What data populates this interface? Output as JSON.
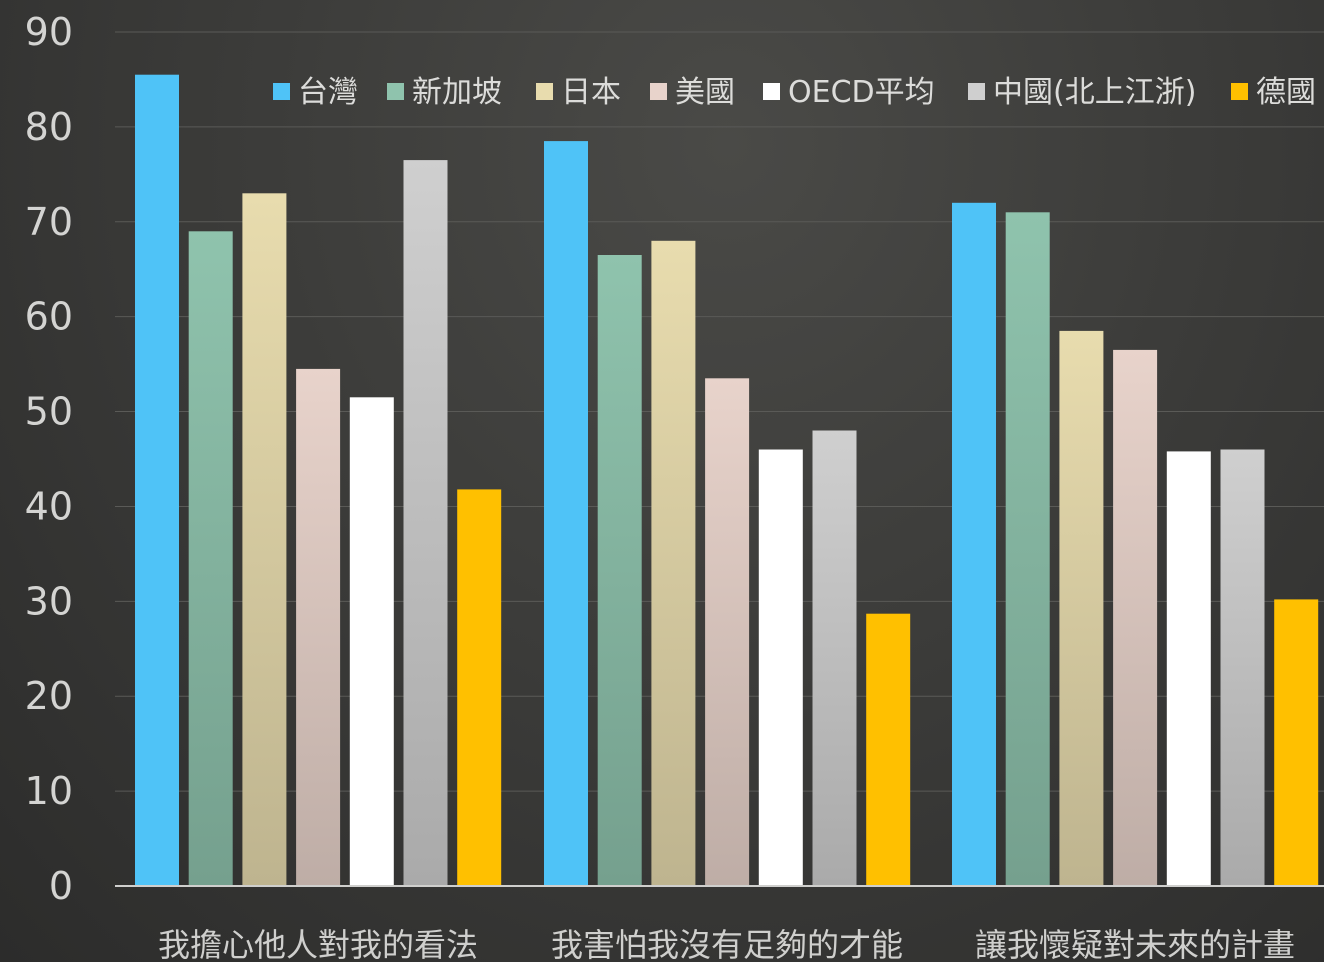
{
  "chart_data": {
    "type": "bar",
    "title": "",
    "xlabel": "",
    "ylabel": "",
    "ylim": [
      0,
      90
    ],
    "yticks": [
      0,
      10,
      20,
      30,
      40,
      50,
      60,
      70,
      80,
      90
    ],
    "grid": true,
    "legend_position": "top",
    "categories": [
      "我擔心他人對我的看法",
      "我害怕我沒有足夠的才能",
      "讓我懷疑對未來的計畫"
    ],
    "series": [
      {
        "name": "台灣",
        "color": "#4fc3f7",
        "values": [
          85.5,
          78.5,
          72
        ]
      },
      {
        "name": "新加坡",
        "color": "#8fc3ad",
        "values": [
          69,
          66.5,
          71
        ]
      },
      {
        "name": "日本",
        "color": "#e8dcae",
        "values": [
          73,
          68,
          58.5
        ]
      },
      {
        "name": "美國",
        "color": "#e8d3cb",
        "values": [
          54.5,
          53.5,
          56.5
        ]
      },
      {
        "name": "OECD平均",
        "color": "#ffffff",
        "values": [
          51.5,
          46,
          45.8
        ]
      },
      {
        "name": "中國(北上江浙)",
        "color": "#cfcfcf",
        "values": [
          76.5,
          48,
          46
        ]
      },
      {
        "name": "德國",
        "color": "#ffc000",
        "values": [
          41.8,
          28.7,
          30.2
        ]
      }
    ]
  }
}
